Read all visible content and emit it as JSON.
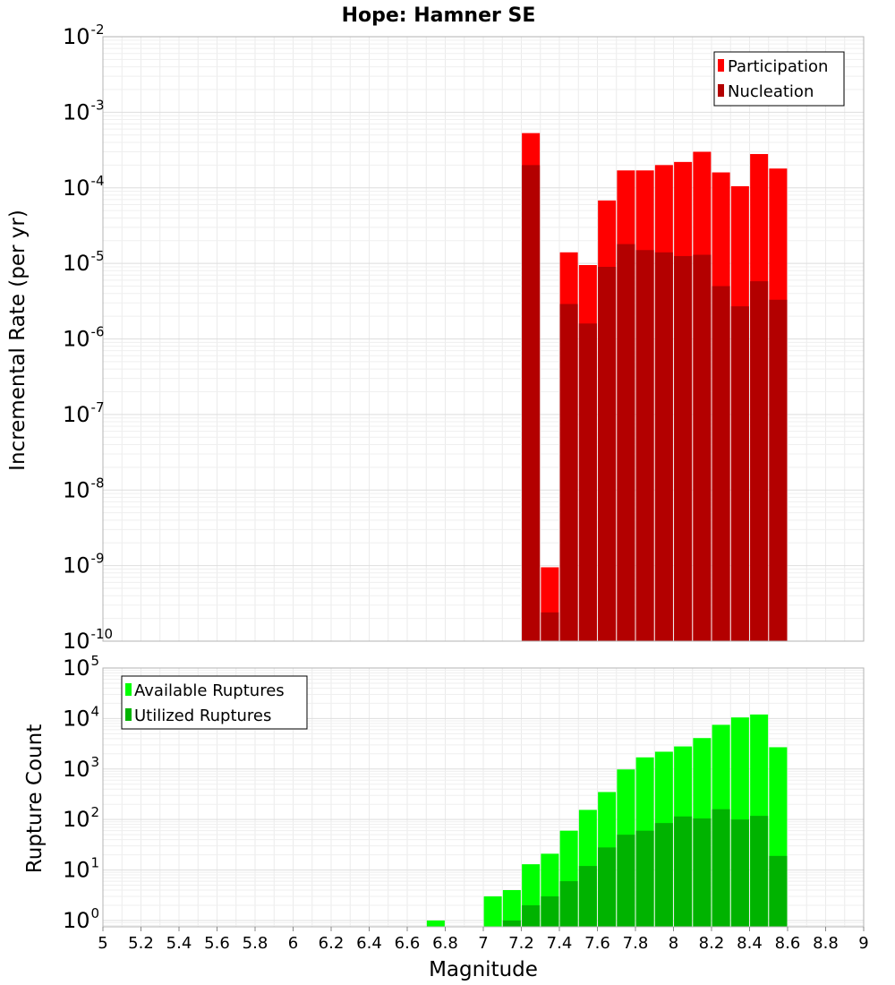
{
  "chart_data": [
    {
      "type": "bar",
      "title": "Hope: Hamner SE",
      "ylabel": "Incremental Rate (per yr)",
      "yscale": "log",
      "ylim": [
        1e-10,
        0.01
      ],
      "xlim": [
        5,
        9
      ],
      "legend_placement": "top-right",
      "x": [
        7.25,
        7.35,
        7.45,
        7.55,
        7.65,
        7.75,
        7.85,
        7.95,
        8.05,
        8.15,
        8.25,
        8.35,
        8.45,
        8.55
      ],
      "series": [
        {
          "name": "Participation",
          "color": "#ff0000",
          "values": [
            0.00053,
            9.5e-10,
            1.4e-05,
            9.5e-06,
            6.8e-05,
            0.00017,
            0.00017,
            0.0002,
            0.00022,
            0.0003,
            0.00016,
            0.000105,
            0.00028,
            0.00018
          ]
        },
        {
          "name": "Nucleation",
          "color": "#b30000",
          "values": [
            0.0002,
            2.4e-10,
            2.9e-06,
            1.6e-06,
            9e-06,
            1.8e-05,
            1.5e-05,
            1.4e-05,
            1.25e-05,
            1.3e-05,
            5e-06,
            2.7e-06,
            5.8e-06,
            3.3e-06
          ]
        }
      ]
    },
    {
      "type": "bar",
      "title": "",
      "xlabel": "Magnitude",
      "ylabel": "Rupture Count",
      "yscale": "log",
      "ylim": [
        0.75,
        100000.0
      ],
      "xlim": [
        5,
        9
      ],
      "legend_placement": "top-left",
      "x": [
        6.75,
        7.05,
        7.15,
        7.25,
        7.35,
        7.45,
        7.55,
        7.65,
        7.75,
        7.85,
        7.95,
        8.05,
        8.15,
        8.25,
        8.35,
        8.45,
        8.55
      ],
      "series": [
        {
          "name": "Available Ruptures",
          "color": "#00ff00",
          "values": [
            1,
            3,
            4,
            13,
            21,
            60,
            155,
            350,
            980,
            1700,
            2200,
            2800,
            4100,
            7500,
            10500,
            12000,
            2700
          ]
        },
        {
          "name": "Utilized Ruptures",
          "color": "#00b300",
          "values": [
            0,
            0,
            1,
            2,
            3,
            6,
            12,
            28,
            50,
            60,
            85,
            115,
            105,
            160,
            100,
            118,
            19
          ]
        }
      ]
    }
  ],
  "x_ticks": [
    "5",
    "5.2",
    "5.4",
    "5.6",
    "5.8",
    "6",
    "6.2",
    "6.4",
    "6.6",
    "6.8",
    "7",
    "7.2",
    "7.4",
    "7.6",
    "7.8",
    "8",
    "8.2",
    "8.4",
    "8.6",
    "8.8",
    "9"
  ],
  "top_y_ticks": [
    {
      "base": "10",
      "exp": "-10"
    },
    {
      "base": "10",
      "exp": "-9"
    },
    {
      "base": "10",
      "exp": "-8"
    },
    {
      "base": "10",
      "exp": "-7"
    },
    {
      "base": "10",
      "exp": "-6"
    },
    {
      "base": "10",
      "exp": "-5"
    },
    {
      "base": "10",
      "exp": "-4"
    },
    {
      "base": "10",
      "exp": "-3"
    },
    {
      "base": "10",
      "exp": "-2"
    }
  ],
  "bottom_y_ticks": [
    {
      "base": "10",
      "exp": "0"
    },
    {
      "base": "10",
      "exp": "1"
    },
    {
      "base": "10",
      "exp": "2"
    },
    {
      "base": "10",
      "exp": "3"
    },
    {
      "base": "10",
      "exp": "4"
    },
    {
      "base": "10",
      "exp": "5"
    }
  ]
}
